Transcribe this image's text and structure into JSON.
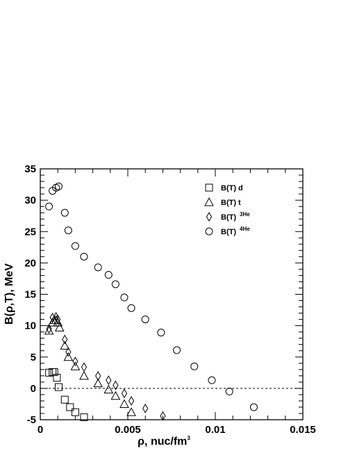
{
  "chart_data": {
    "type": "scatter",
    "title": "",
    "xlabel": "ρ, nuc/fm",
    "xlabel_sup": "3",
    "ylabel": "B(ρ,T), MeV",
    "xlim": [
      0,
      0.015
    ],
    "ylim": [
      -5,
      35
    ],
    "x_ticks": [
      0,
      0.005,
      0.01,
      0.015
    ],
    "x_tick_labels": [
      "0",
      "0.005",
      "0.01",
      "0.015"
    ],
    "y_ticks": [
      -5,
      0,
      5,
      10,
      15,
      20,
      25,
      30,
      35
    ],
    "y_tick_labels": [
      "-5",
      "0",
      "5",
      "10",
      "15",
      "20",
      "25",
      "30",
      "35"
    ],
    "reference_line": {
      "y": 0,
      "style": "dashed"
    },
    "legend_position": "top-right",
    "series": [
      {
        "name": "B(T) d",
        "name_sup": "",
        "marker": "square",
        "points": [
          [
            0.0005,
            2.5
          ],
          [
            0.0007,
            2.6
          ],
          [
            0.0008,
            2.6
          ],
          [
            0.00095,
            1.7
          ],
          [
            0.00105,
            0.2
          ],
          [
            0.0014,
            -1.8
          ],
          [
            0.0017,
            -3.0
          ],
          [
            0.002,
            -3.8
          ],
          [
            0.0025,
            -4.6
          ]
        ]
      },
      {
        "name": "B(T) t",
        "name_sup": "",
        "marker": "triangle",
        "points": [
          [
            0.0005,
            9.2
          ],
          [
            0.0007,
            10.5
          ],
          [
            0.0008,
            10.9
          ],
          [
            0.0009,
            10.9
          ],
          [
            0.001,
            10.5
          ],
          [
            0.0011,
            9.7
          ],
          [
            0.0014,
            6.8
          ],
          [
            0.0016,
            5.0
          ],
          [
            0.002,
            3.5
          ],
          [
            0.0025,
            2.0
          ],
          [
            0.0033,
            0.8
          ],
          [
            0.0039,
            -0.2
          ],
          [
            0.0043,
            -1.2
          ],
          [
            0.0048,
            -2.5
          ],
          [
            0.0052,
            -3.8
          ]
        ]
      },
      {
        "name": "B(T) ",
        "name_sup": "3He",
        "marker": "diamond",
        "points": [
          [
            0.0005,
            9.5
          ],
          [
            0.0007,
            11.3
          ],
          [
            0.0009,
            11.4
          ],
          [
            0.001,
            11.0
          ],
          [
            0.0014,
            7.8
          ],
          [
            0.0016,
            5.8
          ],
          [
            0.002,
            4.3
          ],
          [
            0.0025,
            3.4
          ],
          [
            0.0033,
            2.0
          ],
          [
            0.0039,
            1.3
          ],
          [
            0.0043,
            0.5
          ],
          [
            0.0048,
            -0.8
          ],
          [
            0.0052,
            -2.0
          ],
          [
            0.006,
            -3.2
          ],
          [
            0.007,
            -4.4
          ]
        ]
      },
      {
        "name": "B(T) ",
        "name_sup": "4He",
        "marker": "circle",
        "points": [
          [
            0.0005,
            29.0
          ],
          [
            0.0007,
            31.5
          ],
          [
            0.0009,
            32.0
          ],
          [
            0.00105,
            32.2
          ],
          [
            0.0014,
            28.0
          ],
          [
            0.0016,
            25.2
          ],
          [
            0.002,
            22.7
          ],
          [
            0.0025,
            21.0
          ],
          [
            0.0033,
            19.3
          ],
          [
            0.0039,
            18.1
          ],
          [
            0.0043,
            16.6
          ],
          [
            0.0048,
            14.5
          ],
          [
            0.0052,
            12.8
          ],
          [
            0.006,
            11.0
          ],
          [
            0.0069,
            8.9
          ],
          [
            0.0078,
            6.1
          ],
          [
            0.0088,
            3.5
          ],
          [
            0.0098,
            1.3
          ],
          [
            0.0108,
            -0.5
          ],
          [
            0.0122,
            -3.0
          ]
        ]
      }
    ]
  }
}
